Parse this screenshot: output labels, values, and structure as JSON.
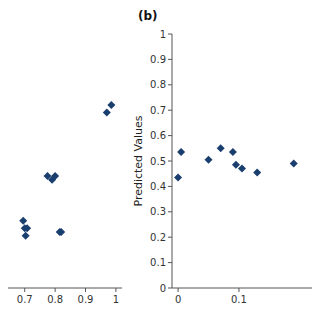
{
  "chart_data": [
    {
      "type": "scatter",
      "x": [
        0.695,
        0.7,
        0.703,
        0.708,
        0.775,
        0.79,
        0.8,
        0.815,
        0.82,
        0.97,
        0.985
      ],
      "values": [
        0.47,
        0.46,
        0.45,
        0.46,
        0.53,
        0.525,
        0.53,
        0.455,
        0.455,
        0.615,
        0.625
      ],
      "xlim": [
        0.645,
        1.02
      ],
      "xticks": [
        0.7,
        0.8,
        0.9,
        1
      ],
      "ylim": [
        0.38,
        0.72
      ],
      "tick_labels": "x",
      "color": "#1a3f6f",
      "marker": "diamond"
    },
    {
      "type": "scatter",
      "title": "(b)",
      "x": [
        0.0,
        0.005,
        0.05,
        0.07,
        0.09,
        0.095,
        0.105,
        0.13,
        0.19
      ],
      "values": [
        0.435,
        0.535,
        0.505,
        0.55,
        0.535,
        0.485,
        0.47,
        0.455,
        0.49
      ],
      "xlim": [
        -0.01,
        0.22
      ],
      "xticks": [
        0,
        0.1
      ],
      "ylim": [
        0,
        1
      ],
      "yticks": [
        0,
        0.1,
        0.2,
        0.3,
        0.4,
        0.5,
        0.6,
        0.7,
        0.8,
        0.9,
        1
      ],
      "y_label": "Predicted Values",
      "color": "#1a3f6f",
      "marker": "diamond"
    }
  ]
}
